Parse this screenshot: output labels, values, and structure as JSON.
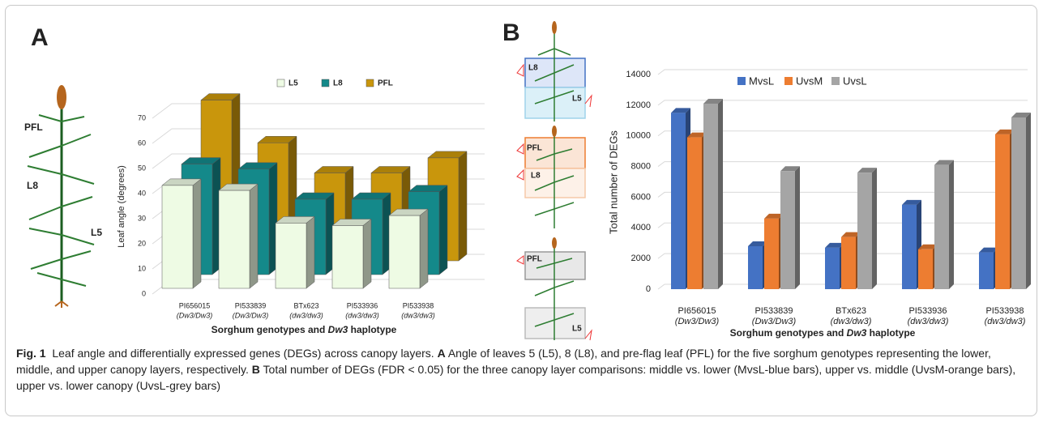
{
  "figure": {
    "panel_labels": [
      "A",
      "B"
    ],
    "plant_a_labels": [
      "PFL",
      "L8",
      "L5"
    ],
    "plant_b_labels": [
      "L8",
      "L5",
      "PFL",
      "L8",
      "PFL",
      "L5"
    ]
  },
  "chart_data": [
    {
      "type": "bar3d",
      "categories": [
        "PI656015",
        "PI533839",
        "BTx623",
        "PI533936",
        "PI533938"
      ],
      "category_sublabels": [
        "(Dw3/Dw3)",
        "(Dw3/Dw3)",
        "(dw3/dw3)",
        "(dw3/dw3)",
        "(dw3/dw3)"
      ],
      "y_label": "Leaf angle (degrees)",
      "x_label_parts": [
        "Sorghum genotypes and ",
        "Dw3",
        " haplotype"
      ],
      "ylim": [
        0,
        70
      ],
      "yticks": [
        0,
        10,
        20,
        30,
        40,
        50,
        60,
        70
      ],
      "grid": true,
      "series": [
        {
          "name": "L5",
          "color": "#eefbe4",
          "values": [
            41,
            39,
            26,
            25,
            29
          ]
        },
        {
          "name": "L8",
          "color": "#14898a",
          "values": [
            44,
            42,
            30,
            30,
            33
          ]
        },
        {
          "name": "PFL",
          "color": "#c9960c",
          "values": [
            64,
            47,
            35,
            35,
            41
          ]
        }
      ]
    },
    {
      "type": "bar",
      "categories": [
        "PI656015",
        "PI533839",
        "BTx623",
        "PI533936",
        "PI533938"
      ],
      "category_sublabels": [
        "(Dw3/Dw3)",
        "(Dw3/Dw3)",
        "(dw3/dw3)",
        "(dw3/dw3)",
        "(dw3/dw3)"
      ],
      "y_label": "Total number of DEGs",
      "x_label_parts": [
        "Sorghum genotypes and ",
        "Dw3",
        " haplotype"
      ],
      "ylim": [
        0,
        14000
      ],
      "yticks": [
        0,
        2000,
        4000,
        6000,
        8000,
        10000,
        12000,
        14000
      ],
      "grid": true,
      "series": [
        {
          "name": "MvsL",
          "color": "#4472c4",
          "values": [
            11500,
            2800,
            2700,
            5500,
            2400
          ]
        },
        {
          "name": "UvsM",
          "color": "#ed7d31",
          "values": [
            9900,
            4600,
            3400,
            2600,
            10100
          ]
        },
        {
          "name": "UvsL",
          "color": "#a5a5a5",
          "values": [
            12100,
            7700,
            7600,
            8100,
            11200
          ]
        }
      ]
    }
  ],
  "caption": {
    "label": "Fig. 1",
    "parts": [
      "Leaf angle and differentially expressed genes (DEGs) across canopy layers. ",
      "A",
      " Angle of leaves 5 (L5), 8 (L8), and pre-flag leaf (PFL) for the five sorghum genotypes representing the lower, middle, and upper canopy layers, respectively. ",
      "B",
      " Total number of DEGs (FDR < 0.05) for the three canopy layer comparisons: middle vs. lower (MvsL-blue bars), upper vs. middle (UvsM-orange bars), upper vs. lower canopy (UvsL-grey bars)"
    ]
  }
}
